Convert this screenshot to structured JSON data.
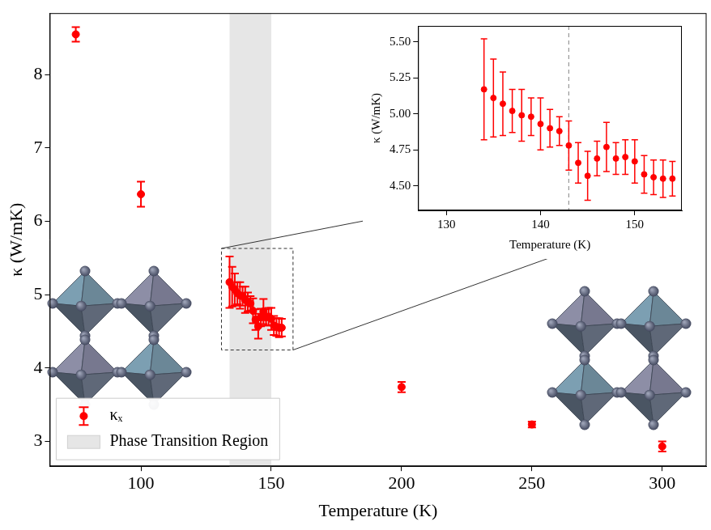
{
  "chart_data": [
    {
      "type": "scatter",
      "x_label": "Temperature (K)",
      "y_label": "κ (W/mK)",
      "xlim": [
        65,
        317
      ],
      "xticks": [
        100,
        150,
        200,
        250,
        300
      ],
      "ylim": [
        2.66,
        8.84
      ],
      "yticks": [
        3,
        4,
        5,
        6,
        7,
        8
      ],
      "grid": false,
      "legend": "lower left",
      "shaded_region": {
        "label": "Phase Transition Region",
        "x": [
          134,
          150
        ],
        "color": "#e6e6e6"
      },
      "series": [
        {
          "name": "κₓ",
          "color": "#ff0000",
          "marker": "circle",
          "x": [
            75,
            100,
            134,
            135,
            136,
            137,
            138,
            139,
            140,
            141,
            142,
            143,
            144,
            145,
            146,
            147,
            148,
            149,
            150,
            151,
            152,
            153,
            154,
            200,
            250,
            300
          ],
          "values": [
            8.55,
            6.37,
            5.17,
            5.11,
            5.07,
            5.02,
            4.99,
            4.98,
            4.93,
            4.9,
            4.88,
            4.78,
            4.66,
            4.57,
            4.69,
            4.77,
            4.69,
            4.7,
            4.67,
            4.58,
            4.56,
            4.55,
            4.55,
            3.74,
            3.23,
            2.93
          ],
          "errors": [
            0.1,
            0.17,
            0.35,
            0.27,
            0.22,
            0.15,
            0.18,
            0.13,
            0.18,
            0.13,
            0.1,
            0.17,
            0.14,
            0.17,
            0.12,
            0.17,
            0.11,
            0.12,
            0.15,
            0.13,
            0.12,
            0.13,
            0.12,
            0.07,
            0.04,
            0.07
          ]
        }
      ]
    },
    {
      "type": "scatter",
      "x_label": "Temperature (K)",
      "y_label": "κ (W/mK)",
      "xlim": [
        127,
        155
      ],
      "xticks": [
        130,
        140,
        150
      ],
      "ylim": [
        4.33,
        5.61
      ],
      "yticks": [
        {
          "value": 4.5,
          "label": "4.50"
        },
        {
          "value": 4.75,
          "label": "4.75"
        },
        {
          "value": 5.0,
          "label": "5.00"
        },
        {
          "value": 5.25,
          "label": "5.25"
        },
        {
          "value": 5.5,
          "label": "5.50"
        }
      ],
      "grid": false,
      "vertical_line": {
        "x": 143,
        "line_style": "dashed",
        "color": "#999999"
      },
      "series": [
        {
          "color": "#ff0000",
          "marker": "circle",
          "x": [
            134,
            135,
            136,
            137,
            138,
            139,
            140,
            141,
            142,
            143,
            144,
            145,
            146,
            147,
            148,
            149,
            150,
            151,
            152,
            153,
            154
          ],
          "values": [
            5.17,
            5.11,
            5.07,
            5.02,
            4.99,
            4.98,
            4.93,
            4.9,
            4.88,
            4.78,
            4.66,
            4.57,
            4.69,
            4.77,
            4.69,
            4.7,
            4.67,
            4.58,
            4.56,
            4.55,
            4.55
          ],
          "errors": [
            0.35,
            0.27,
            0.22,
            0.15,
            0.18,
            0.13,
            0.18,
            0.13,
            0.1,
            0.17,
            0.14,
            0.17,
            0.12,
            0.17,
            0.11,
            0.12,
            0.15,
            0.13,
            0.12,
            0.13,
            0.12
          ]
        }
      ]
    }
  ]
}
